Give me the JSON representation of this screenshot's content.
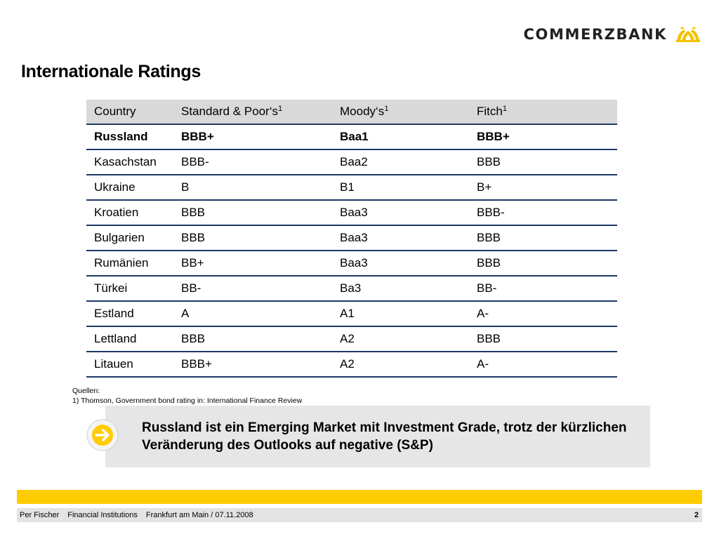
{
  "brand": {
    "name": "COMMERZBANK",
    "logo_icon": "commerzbank-ribbon-icon",
    "accent": "#ffcc00"
  },
  "title": "Internationale Ratings",
  "table": {
    "headers": [
      {
        "label": "Country",
        "sup": ""
      },
      {
        "label": "Standard & Poor‘s",
        "sup": "1"
      },
      {
        "label": "Moody‘s",
        "sup": "1"
      },
      {
        "label": "Fitch",
        "sup": "1"
      }
    ],
    "rows": [
      {
        "cells": [
          "Russland",
          "BBB+",
          "Baa1",
          "BBB+"
        ],
        "bold": true
      },
      {
        "cells": [
          "Kasachstan",
          "BBB-",
          "Baa2",
          "BBB"
        ],
        "bold": false
      },
      {
        "cells": [
          "Ukraine",
          "B",
          "B1",
          "B+"
        ],
        "bold": false
      },
      {
        "cells": [
          "Kroatien",
          "BBB",
          "Baa3",
          "BBB-"
        ],
        "bold": false
      },
      {
        "cells": [
          "Bulgarien",
          "BBB",
          "Baa3",
          "BBB"
        ],
        "bold": false
      },
      {
        "cells": [
          "Rumänien",
          "BB+",
          "Baa3",
          "BBB"
        ],
        "bold": false
      },
      {
        "cells": [
          "Türkei",
          "BB-",
          "Ba3",
          "BB-"
        ],
        "bold": false
      },
      {
        "cells": [
          "Estland",
          "A",
          "A1",
          "A-"
        ],
        "bold": false
      },
      {
        "cells": [
          "Lettland",
          "BBB",
          "A2",
          "BBB"
        ],
        "bold": false
      },
      {
        "cells": [
          "Litauen",
          "BBB+",
          "A2",
          "A-"
        ],
        "bold": false
      }
    ]
  },
  "sources": {
    "heading": "Quellen:",
    "note": "1) Thomson, Government bond rating in: International Finance Review"
  },
  "callout": {
    "icon": "arrow-right-icon",
    "text": "Russland ist ein Emerging Market mit Investment Grade, trotz der kürzlichen Veränderung des Outlooks auf negative (S&P)"
  },
  "footer": {
    "author": "Per Fischer",
    "department": "Financial Institutions",
    "place_date": "Frankfurt am Main / 07.11.2008",
    "page": "2"
  }
}
